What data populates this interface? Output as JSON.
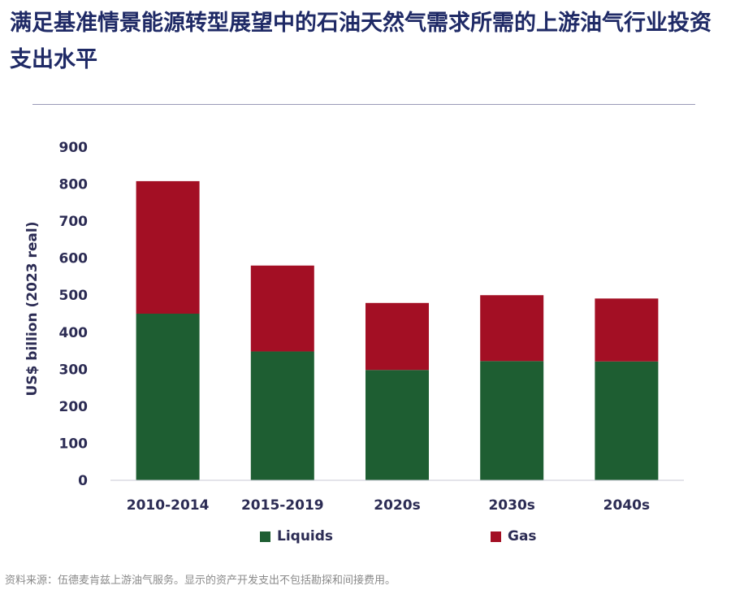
{
  "title": "满足基准情景能源转型展望中的石油天然气需求所需的上游油气行业投资支出水平",
  "source_note": "资料来源：伍德麦肯兹上游油气服务。显示的资产开发支出不包括勘探和间接费用。",
  "colors": {
    "liquids": "#1e5e32",
    "gas": "#a30f24",
    "axis_text": "#2c2c54",
    "title": "#1f2a66"
  },
  "chart_data": {
    "type": "bar",
    "stacked": true,
    "categories": [
      "2010-2014",
      "2015-2019",
      "2020s",
      "2030s",
      "2040s"
    ],
    "series": [
      {
        "name": "Liquids",
        "values": [
          450,
          348,
          298,
          322,
          321
        ]
      },
      {
        "name": "Gas",
        "values": [
          358,
          232,
          181,
          178,
          170
        ]
      }
    ],
    "ylabel": "US$ billion (2023 real)",
    "ylim": [
      0,
      900
    ],
    "yticks": [
      0,
      100,
      200,
      300,
      400,
      500,
      600,
      700,
      800,
      900
    ],
    "grid": false,
    "legend_position": "bottom"
  }
}
